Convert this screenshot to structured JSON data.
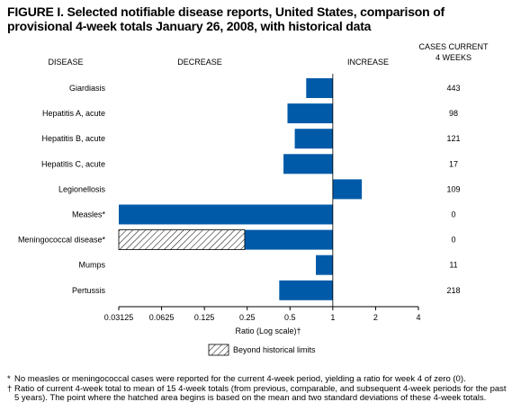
{
  "title": "FIGURE I. Selected notifiable disease reports, United States, comparison of provisional 4-week totals January 26, 2008, with historical data",
  "headers": {
    "disease": "DISEASE",
    "decrease": "DECREASE",
    "increase": "INCREASE",
    "cases_line1": "CASES CURRENT",
    "cases_line2": "4 WEEKS"
  },
  "legend": {
    "label": "Beyond historical limits"
  },
  "footnotes": [
    {
      "mark": "*",
      "text": "No measles or meningococcal cases were reported for the current 4-week period, yielding a ratio for week 4 of zero (0)."
    },
    {
      "mark": "†",
      "text": "Ratio of current 4-week total to mean of 15 4-week totals (from previous, comparable, and subsequent 4-week periods for the past 5 years). The point where the hatched area begins is based on the mean and two standard deviations of these 4-week totals."
    }
  ],
  "colors": {
    "bar": "#005aa8",
    "hatch": "#000000"
  },
  "chart_data": {
    "type": "bar",
    "orientation": "horizontal",
    "scale": "log2",
    "xlim": [
      0.03125,
      4
    ],
    "xlabel": "Ratio (Log scale)†",
    "xticks": [
      0.03125,
      0.0625,
      0.125,
      0.25,
      0.5,
      1,
      2,
      4
    ],
    "xtick_labels": [
      "0.03125",
      "0.0625",
      "0.125",
      "0.25",
      "0.5",
      "1",
      "2",
      "4"
    ],
    "baseline": 1,
    "categories": [
      "Giardiasis",
      "Hepatitis A, acute",
      "Hepatitis B, acute",
      "Hepatitis C, acute",
      "Legionellosis",
      "Measles*",
      "Meningococcal disease*",
      "Mumps",
      "Pertussis"
    ],
    "values": [
      0.65,
      0.48,
      0.54,
      0.45,
      1.6,
      0.03125,
      0.03125,
      0.76,
      0.42
    ],
    "hatched_from": [
      null,
      null,
      null,
      null,
      null,
      null,
      0.24,
      null,
      null
    ],
    "cases_current_4_weeks": [
      "443",
      "98",
      "121",
      "17",
      "109",
      "0",
      "0",
      "11",
      "218"
    ]
  }
}
